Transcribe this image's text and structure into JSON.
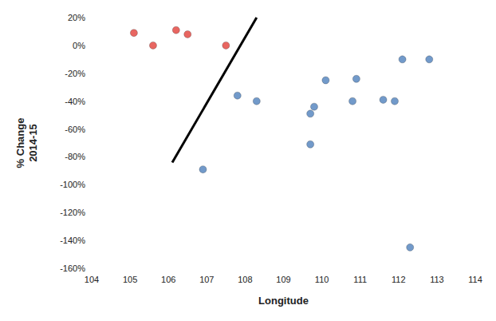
{
  "chart_data": {
    "type": "scatter",
    "xlabel": "Longitude",
    "ylabel": "% Change\n2014-15",
    "xlim": [
      104,
      114
    ],
    "xticks": [
      104,
      105,
      106,
      107,
      108,
      109,
      110,
      111,
      112,
      113,
      114
    ],
    "ylim": [
      -160,
      20
    ],
    "yticks": [
      {
        "value": -160,
        "label": "-160%"
      },
      {
        "value": -140,
        "label": "-140%"
      },
      {
        "value": -120,
        "label": "-120%"
      },
      {
        "value": -100,
        "label": "-100%"
      },
      {
        "value": -80,
        "label": "-80%"
      },
      {
        "value": -60,
        "label": "-60%"
      },
      {
        "value": -40,
        "label": "-40%"
      },
      {
        "value": -20,
        "label": "-20%"
      },
      {
        "value": 0,
        "label": "0%"
      },
      {
        "value": 20,
        "label": "20%"
      }
    ],
    "grid": false,
    "series": [
      {
        "color": "#e2403a",
        "marker": "circle",
        "x": [
          105.1,
          105.6,
          106.2,
          106.5,
          107.5
        ],
        "y": [
          9,
          0,
          11,
          8,
          0
        ]
      },
      {
        "color": "#4f81bd",
        "marker": "circle",
        "x": [
          106.9,
          107.8,
          108.3,
          109.7,
          109.7,
          109.8,
          110.1,
          110.8,
          110.9,
          111.6,
          111.9,
          112.1,
          112.3,
          112.8
        ],
        "y": [
          -89,
          -36,
          -40,
          -49,
          -71,
          -44,
          -25,
          -40,
          -24,
          -39,
          -40,
          -10,
          -145,
          -10
        ]
      }
    ],
    "annotations": [
      {
        "type": "line",
        "color": "#000000",
        "x": [
          106.1,
          108.3
        ],
        "y": [
          -84,
          20
        ]
      }
    ]
  }
}
